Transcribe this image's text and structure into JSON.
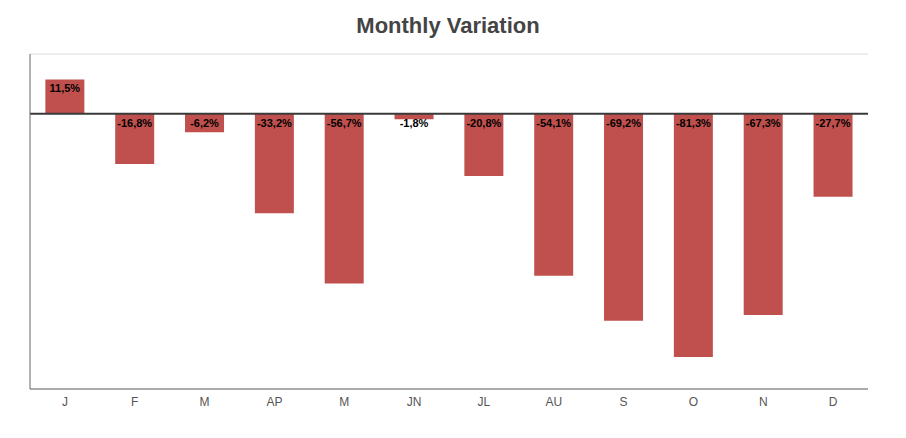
{
  "chart_data": {
    "type": "bar",
    "title": "Monthly Variation",
    "categories": [
      "J",
      "F",
      "M",
      "AP",
      "M",
      "JN",
      "JL",
      "AU",
      "S",
      "O",
      "N",
      "D"
    ],
    "values": [
      11.5,
      -16.8,
      -6.2,
      -33.2,
      -56.7,
      -1.8,
      -20.8,
      -54.1,
      -69.2,
      -81.3,
      -67.3,
      -27.7
    ],
    "value_labels": [
      "11,5%",
      "-16,8%",
      "-6,2%",
      "-33,2%",
      "-56,7%",
      "-1,8%",
      "-20,8%",
      "-54,1%",
      "-69,2%",
      "-81,3%",
      "-67,3%",
      "-27,7%"
    ],
    "color": "#c0504d",
    "ylim": [
      -92,
      20
    ],
    "yticks": [
      -80,
      -60,
      -40,
      -20
    ],
    "grid": true,
    "data_labels": true,
    "tick_labels": "x"
  }
}
